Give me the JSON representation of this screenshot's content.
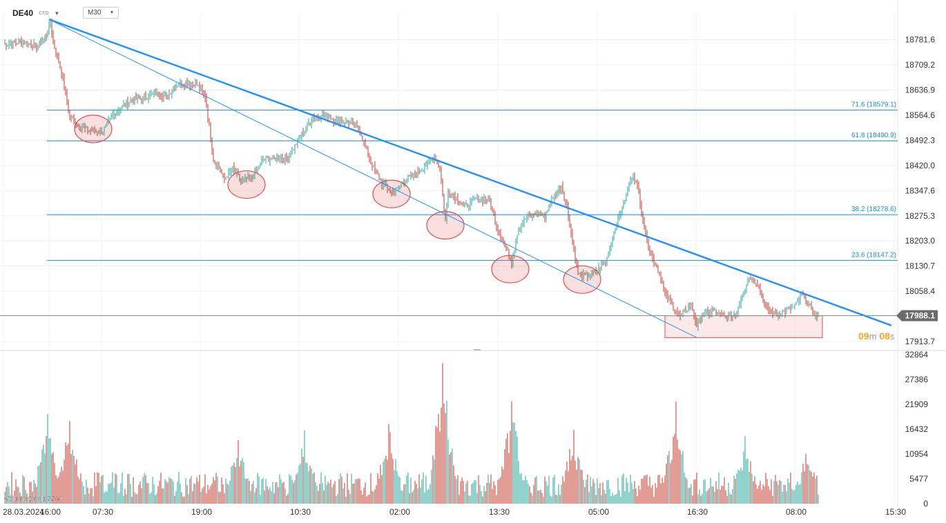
{
  "header": {
    "symbol": "DE40",
    "instrument_type": "CFD",
    "timeframe": "M30"
  },
  "countdown": {
    "minutes": "09",
    "min_unit": "m",
    "seconds": "08",
    "sec_unit": "s"
  },
  "volume_label": "Volume (real) 2764",
  "colors": {
    "up": "#26a69a",
    "down": "#c0392b",
    "trend": "#1e90ff",
    "fib": "#1a8cd8",
    "zone": "#e34b4b"
  },
  "chart_data": [
    {
      "type": "candlestick",
      "title": "",
      "ylim": [
        17890,
        18860
      ],
      "y_ticks": [
        18781.6,
        18709.2,
        18636.9,
        18564.6,
        18492.3,
        18420.0,
        18347.6,
        18275.3,
        18203.0,
        18130.7,
        18058.4,
        17988.1,
        17913.7
      ],
      "current_price": 17988.1,
      "x_labels": [
        "28.03.2024",
        "16:00",
        "07:30",
        "19:00",
        "10:30",
        "02:00",
        "13:30",
        "05:00",
        "16:30",
        "08:00",
        "15:30"
      ],
      "fibonacci_levels": [
        {
          "ratio": 71.6,
          "price": 18579.1,
          "label": "71.6 (18579.1)"
        },
        {
          "ratio": 61.8,
          "price": 18490.9,
          "label": "61.8 (18490.9)"
        },
        {
          "ratio": 38.2,
          "price": 18278.6,
          "label": "38.2 (18278.6)"
        },
        {
          "ratio": 23.6,
          "price": 18147.2,
          "label": "23.6 (18147.2)"
        }
      ],
      "trendlines": [
        {
          "name": "thick",
          "from": {
            "bar": 33,
            "price": 18840
          },
          "to": {
            "bar": 643,
            "price": 17960
          }
        },
        {
          "name": "thin",
          "from": {
            "bar": 33,
            "price": 18840
          },
          "to": {
            "bar": 502,
            "price": 17925
          }
        }
      ],
      "support_zone": {
        "bar_start": 479,
        "bar_end": 593,
        "price_low": 17925,
        "price_high": 17988
      },
      "highlight_ellipses": [
        {
          "bar": 65,
          "price": 18525
        },
        {
          "bar": 176,
          "price": 18365
        },
        {
          "bar": 281,
          "price": 18338
        },
        {
          "bar": 320,
          "price": 18248
        },
        {
          "bar": 367,
          "price": 18122
        },
        {
          "bar": 419,
          "price": 18092
        }
      ],
      "path_anchors_bar_price": [
        [
          0,
          18768
        ],
        [
          14,
          18776
        ],
        [
          24,
          18762
        ],
        [
          31,
          18792
        ],
        [
          34,
          18830
        ],
        [
          36,
          18770
        ],
        [
          40,
          18720
        ],
        [
          44,
          18650
        ],
        [
          48,
          18560
        ],
        [
          56,
          18530
        ],
        [
          64,
          18520
        ],
        [
          72,
          18518
        ],
        [
          80,
          18568
        ],
        [
          92,
          18608
        ],
        [
          100,
          18612
        ],
        [
          110,
          18628
        ],
        [
          118,
          18618
        ],
        [
          128,
          18660
        ],
        [
          140,
          18652
        ],
        [
          146,
          18618
        ],
        [
          148,
          18560
        ],
        [
          152,
          18440
        ],
        [
          160,
          18382
        ],
        [
          166,
          18410
        ],
        [
          172,
          18376
        ],
        [
          180,
          18386
        ],
        [
          188,
          18438
        ],
        [
          196,
          18440
        ],
        [
          206,
          18444
        ],
        [
          216,
          18510
        ],
        [
          224,
          18560
        ],
        [
          234,
          18564
        ],
        [
          240,
          18550
        ],
        [
          252,
          18540
        ],
        [
          258,
          18520
        ],
        [
          266,
          18428
        ],
        [
          274,
          18370
        ],
        [
          282,
          18340
        ],
        [
          290,
          18376
        ],
        [
          300,
          18398
        ],
        [
          306,
          18424
        ],
        [
          312,
          18448
        ],
        [
          316,
          18410
        ],
        [
          320,
          18260
        ],
        [
          322,
          18348
        ],
        [
          334,
          18300
        ],
        [
          342,
          18326
        ],
        [
          352,
          18320
        ],
        [
          356,
          18258
        ],
        [
          364,
          18182
        ],
        [
          368,
          18140
        ],
        [
          372,
          18226
        ],
        [
          378,
          18268
        ],
        [
          386,
          18285
        ],
        [
          392,
          18275
        ],
        [
          398,
          18330
        ],
        [
          404,
          18362
        ],
        [
          408,
          18300
        ],
        [
          412,
          18200
        ],
        [
          416,
          18110
        ],
        [
          422,
          18100
        ],
        [
          428,
          18112
        ],
        [
          436,
          18140
        ],
        [
          442,
          18230
        ],
        [
          448,
          18300
        ],
        [
          452,
          18350
        ],
        [
          456,
          18400
        ],
        [
          460,
          18340
        ],
        [
          464,
          18240
        ],
        [
          468,
          18170
        ],
        [
          474,
          18120
        ],
        [
          480,
          18040
        ],
        [
          484,
          18020
        ],
        [
          490,
          17985
        ],
        [
          498,
          18020
        ],
        [
          502,
          17960
        ],
        [
          506,
          17990
        ],
        [
          514,
          18002
        ],
        [
          522,
          17985
        ],
        [
          530,
          17990
        ],
        [
          536,
          18060
        ],
        [
          540,
          18100
        ],
        [
          546,
          18080
        ],
        [
          552,
          18010
        ],
        [
          560,
          17990
        ],
        [
          566,
          18000
        ],
        [
          574,
          18020
        ],
        [
          578,
          18050
        ],
        [
          584,
          18010
        ],
        [
          590,
          17985
        ]
      ],
      "volume": {
        "ylim": [
          0,
          32864
        ],
        "y_ticks": [
          32864,
          27386,
          21909,
          16432,
          10954,
          5477,
          0
        ],
        "spikes": [
          [
            32,
            19800
          ],
          [
            48,
            18200
          ],
          [
            78,
            4700
          ],
          [
            170,
            14000
          ],
          [
            218,
            16200
          ],
          [
            279,
            17500
          ],
          [
            318,
            31000
          ],
          [
            368,
            22600
          ],
          [
            413,
            16300
          ],
          [
            487,
            22500
          ],
          [
            537,
            14900
          ],
          [
            581,
            11000
          ]
        ]
      }
    }
  ]
}
